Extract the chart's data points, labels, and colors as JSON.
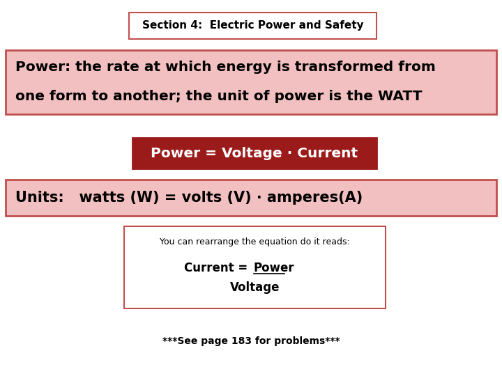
{
  "bg_color": "#ffffff",
  "title_text": "Section 4:  Electric Power and Safety",
  "title_box_color": "#ffffff",
  "title_border_color": "#c0504d",
  "title_text_color": "#000000",
  "title_fontsize": 11,
  "power_def_text1": "Power: the rate at which energy is transformed from",
  "power_def_text2": "one form to another; the unit of power is the WATT",
  "power_def_box_color": "#f2c0c0",
  "power_def_border_color": "#c0504d",
  "power_def_text_color": "#000000",
  "power_def_fontsize": 14.5,
  "formula_text": "Power = Voltage · Current",
  "formula_box_color": "#9b1b1b",
  "formula_border_color": "#9b1b1b",
  "formula_text_color": "#ffffff",
  "formula_fontsize": 14.5,
  "units_text": "Units:   watts (W) = volts (V) · amperes(A)",
  "units_box_color": "#f2c0c0",
  "units_border_color": "#c0504d",
  "units_text_color": "#000000",
  "units_fontsize": 15,
  "rearrange_small": "You can rearrange the equation do it reads:",
  "rearrange_line1": "Current = ",
  "rearrange_underline": "Power",
  "rearrange_line2": "Voltage",
  "rearrange_box_color": "#ffffff",
  "rearrange_border_color": "#c0504d",
  "rearrange_text_color": "#000000",
  "rearrange_small_fontsize": 9,
  "rearrange_fontsize": 12,
  "footnote_text": "***See page 183 for problems***",
  "footnote_fontsize": 10,
  "footnote_color": "#000000"
}
